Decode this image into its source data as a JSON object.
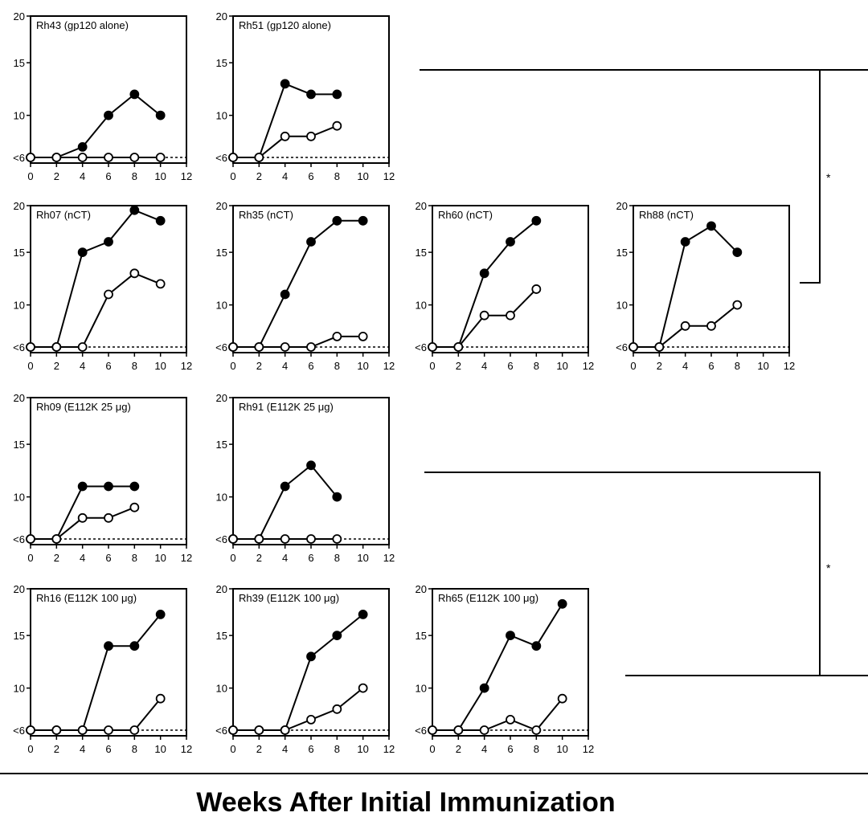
{
  "x_label": "Weeks After Initial Immunization",
  "significance_marker": "*",
  "colors": {
    "ink": "#000000",
    "open_fill": "#ffffff"
  },
  "chart_data": [
    {
      "type": "line",
      "title": "Rh43 (gp120 alone)",
      "x_ticks": [
        0,
        2,
        4,
        6,
        8,
        10,
        12
      ],
      "y_ticks": [
        "<6",
        "10",
        "15",
        "20"
      ],
      "xlim": [
        0,
        12
      ],
      "ylim": [
        6,
        20
      ],
      "series": [
        {
          "marker": "filled",
          "x": [
            0,
            2,
            4,
            6,
            8,
            10
          ],
          "y": [
            6,
            6,
            7,
            10,
            12,
            10
          ]
        },
        {
          "marker": "open",
          "x": [
            0,
            2,
            4,
            6,
            8,
            10
          ],
          "y": [
            6,
            6,
            6,
            6,
            6,
            6
          ]
        }
      ]
    },
    {
      "type": "line",
      "title": "Rh51 (gp120 alone)",
      "x_ticks": [
        0,
        2,
        4,
        6,
        8,
        10,
        12
      ],
      "y_ticks": [
        "<6",
        "10",
        "15",
        "20"
      ],
      "xlim": [
        0,
        12
      ],
      "ylim": [
        6,
        20
      ],
      "series": [
        {
          "marker": "filled",
          "x": [
            0,
            2,
            4,
            6,
            8
          ],
          "y": [
            6,
            6,
            13,
            12,
            12
          ]
        },
        {
          "marker": "open",
          "x": [
            0,
            2,
            4,
            6,
            8
          ],
          "y": [
            6,
            6,
            8,
            8,
            9
          ]
        }
      ]
    },
    {
      "type": "line",
      "title": "Rh07 (nCT)",
      "x_ticks": [
        0,
        2,
        4,
        6,
        8,
        10,
        12
      ],
      "y_ticks": [
        "<6",
        "10",
        "15",
        "20"
      ],
      "xlim": [
        0,
        12
      ],
      "ylim": [
        6,
        20
      ],
      "series": [
        {
          "marker": "filled",
          "x": [
            0,
            2,
            4,
            6,
            8,
            10
          ],
          "y": [
            6,
            6,
            15,
            16,
            19,
            18
          ]
        },
        {
          "marker": "open",
          "x": [
            0,
            2,
            4,
            6,
            8,
            10
          ],
          "y": [
            6,
            6,
            6,
            11,
            13,
            12
          ]
        }
      ]
    },
    {
      "type": "line",
      "title": "Rh35 (nCT)",
      "x_ticks": [
        0,
        2,
        4,
        6,
        8,
        10,
        12
      ],
      "y_ticks": [
        "<6",
        "10",
        "15",
        "20"
      ],
      "xlim": [
        0,
        12
      ],
      "ylim": [
        6,
        20
      ],
      "series": [
        {
          "marker": "filled",
          "x": [
            0,
            2,
            4,
            6,
            8,
            10
          ],
          "y": [
            6,
            6,
            11,
            16,
            18,
            18
          ]
        },
        {
          "marker": "open",
          "x": [
            0,
            2,
            4,
            6,
            8,
            10
          ],
          "y": [
            6,
            6,
            6,
            6,
            7,
            7
          ]
        }
      ]
    },
    {
      "type": "line",
      "title": "Rh60 (nCT)",
      "x_ticks": [
        0,
        2,
        4,
        6,
        8,
        10,
        12
      ],
      "y_ticks": [
        "<6",
        "10",
        "15",
        "20"
      ],
      "xlim": [
        0,
        12
      ],
      "ylim": [
        6,
        20
      ],
      "series": [
        {
          "marker": "filled",
          "x": [
            0,
            2,
            4,
            6,
            8
          ],
          "y": [
            6,
            6,
            13,
            16,
            18
          ]
        },
        {
          "marker": "open",
          "x": [
            0,
            2,
            4,
            6,
            8
          ],
          "y": [
            6,
            6,
            9,
            9,
            11.5
          ]
        }
      ]
    },
    {
      "type": "line",
      "title": "Rh88 (nCT)",
      "x_ticks": [
        0,
        2,
        4,
        6,
        8,
        10,
        12
      ],
      "y_ticks": [
        "<6",
        "10",
        "15",
        "20"
      ],
      "xlim": [
        0,
        12
      ],
      "ylim": [
        6,
        20
      ],
      "series": [
        {
          "marker": "filled",
          "x": [
            0,
            2,
            4,
            6,
            8
          ],
          "y": [
            6,
            6,
            16,
            17.5,
            15
          ]
        },
        {
          "marker": "open",
          "x": [
            0,
            2,
            4,
            6,
            8
          ],
          "y": [
            6,
            6,
            8,
            8,
            10
          ]
        }
      ]
    },
    {
      "type": "line",
      "title": "Rh09 (E112K 25 μg)",
      "x_ticks": [
        0,
        2,
        4,
        6,
        8,
        10,
        12
      ],
      "y_ticks": [
        "<6",
        "10",
        "15",
        "20"
      ],
      "xlim": [
        0,
        12
      ],
      "ylim": [
        6,
        20
      ],
      "series": [
        {
          "marker": "filled",
          "x": [
            0,
            2,
            4,
            6,
            8
          ],
          "y": [
            6,
            6,
            11,
            11,
            11
          ]
        },
        {
          "marker": "open",
          "x": [
            0,
            2,
            4,
            6,
            8
          ],
          "y": [
            6,
            6,
            8,
            8,
            9
          ]
        }
      ]
    },
    {
      "type": "line",
      "title": "Rh91 (E112K 25 μg)",
      "x_ticks": [
        0,
        2,
        4,
        6,
        8,
        10,
        12
      ],
      "y_ticks": [
        "<6",
        "10",
        "15",
        "20"
      ],
      "xlim": [
        0,
        12
      ],
      "ylim": [
        6,
        20
      ],
      "series": [
        {
          "marker": "filled",
          "x": [
            0,
            2,
            4,
            6,
            8
          ],
          "y": [
            6,
            6,
            11,
            13,
            10
          ]
        },
        {
          "marker": "open",
          "x": [
            0,
            2,
            4,
            6,
            8
          ],
          "y": [
            6,
            6,
            6,
            6,
            6
          ]
        }
      ]
    },
    {
      "type": "line",
      "title": "Rh16 (E112K 100 μg)",
      "x_ticks": [
        0,
        2,
        4,
        6,
        8,
        10,
        12
      ],
      "y_ticks": [
        "<6",
        "10",
        "15",
        "20"
      ],
      "xlim": [
        0,
        12
      ],
      "ylim": [
        6,
        20
      ],
      "series": [
        {
          "marker": "filled",
          "x": [
            0,
            2,
            4,
            6,
            8,
            10
          ],
          "y": [
            6,
            6,
            6,
            14,
            14,
            17
          ]
        },
        {
          "marker": "open",
          "x": [
            0,
            2,
            4,
            6,
            8,
            10
          ],
          "y": [
            6,
            6,
            6,
            6,
            6,
            9
          ]
        }
      ]
    },
    {
      "type": "line",
      "title": "Rh39 (E112K 100 μg)",
      "x_ticks": [
        0,
        2,
        4,
        6,
        8,
        10,
        12
      ],
      "y_ticks": [
        "<6",
        "10",
        "15",
        "20"
      ],
      "xlim": [
        0,
        12
      ],
      "ylim": [
        6,
        20
      ],
      "series": [
        {
          "marker": "filled",
          "x": [
            0,
            2,
            4,
            6,
            8,
            10
          ],
          "y": [
            6,
            6,
            6,
            13,
            15,
            17
          ]
        },
        {
          "marker": "open",
          "x": [
            0,
            2,
            4,
            6,
            8,
            10
          ],
          "y": [
            6,
            6,
            6,
            7,
            8,
            10
          ]
        }
      ]
    },
    {
      "type": "line",
      "title": "Rh65 (E112K 100 μg)",
      "x_ticks": [
        0,
        2,
        4,
        6,
        8,
        10,
        12
      ],
      "y_ticks": [
        "<6",
        "10",
        "15",
        "20"
      ],
      "xlim": [
        0,
        12
      ],
      "ylim": [
        6,
        20
      ],
      "series": [
        {
          "marker": "filled",
          "x": [
            0,
            2,
            4,
            6,
            8,
            10
          ],
          "y": [
            6,
            6,
            10,
            15,
            14,
            18
          ]
        },
        {
          "marker": "open",
          "x": [
            0,
            2,
            4,
            6,
            8,
            10
          ],
          "y": [
            6,
            6,
            6,
            7,
            6,
            9
          ]
        }
      ]
    }
  ]
}
